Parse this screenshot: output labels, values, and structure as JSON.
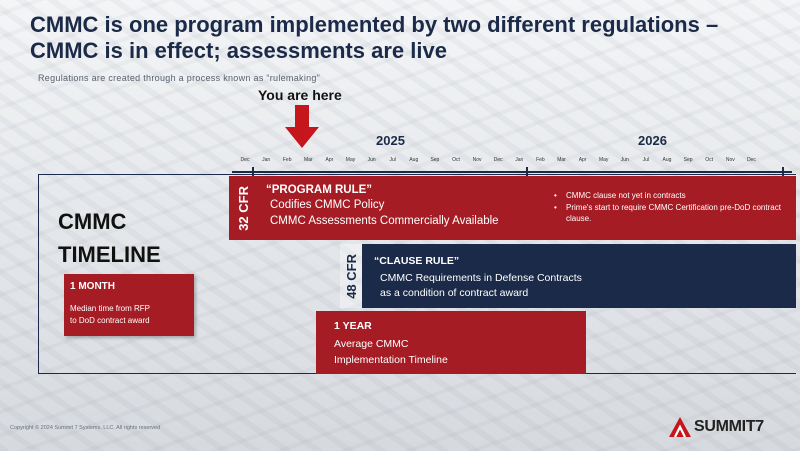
{
  "title": "CMMC is one program implemented by two different regulations – CMMC is in effect; assessments are live",
  "subtitle": "Regulations are created through a process known as “rulemaking”",
  "you_are_here": "You are here",
  "years": [
    "2025",
    "2026"
  ],
  "months": [
    "Dec",
    "Jan",
    "Feb",
    "Mar",
    "Apr",
    "May",
    "Jun",
    "Jul",
    "Aug",
    "Sep",
    "Oct",
    "Nov",
    "Dec",
    "Jan",
    "Feb",
    "Mar",
    "Apr",
    "May",
    "Jun",
    "Jul",
    "Aug",
    "Sep",
    "Oct",
    "Nov",
    "Dec"
  ],
  "timeline_heading": [
    "CMMC",
    "TIMELINE"
  ],
  "program_rule": {
    "tag": "32 CFR",
    "heading": "“PROGRAM RULE”",
    "lines": [
      "Codifies CMMC Policy",
      "CMMC Assessments Commercially Available"
    ],
    "bullets": [
      "CMMC clause not yet in contracts",
      "Prime's start to require CMMC Certification pre-DoD contract clause."
    ]
  },
  "clause_rule": {
    "tag": "48 CFR",
    "heading": "“CLAUSE RULE”",
    "lines": [
      "CMMC Requirements in Defense Contracts",
      "as a condition of contract award"
    ]
  },
  "one_month": {
    "heading": "1 MONTH",
    "lines": [
      "Median time from RFP",
      "to DoD contract award"
    ]
  },
  "one_year": {
    "heading": "1 YEAR",
    "lines": [
      "Average CMMC",
      "Implementation Timeline"
    ]
  },
  "logo": {
    "text": "SUMMIT7"
  },
  "copyright": "Copyright © 2024 Summit 7 Systems, LLC. All rights reserved",
  "colors": {
    "navy": "#1b2a48",
    "red": "#a61c24"
  }
}
